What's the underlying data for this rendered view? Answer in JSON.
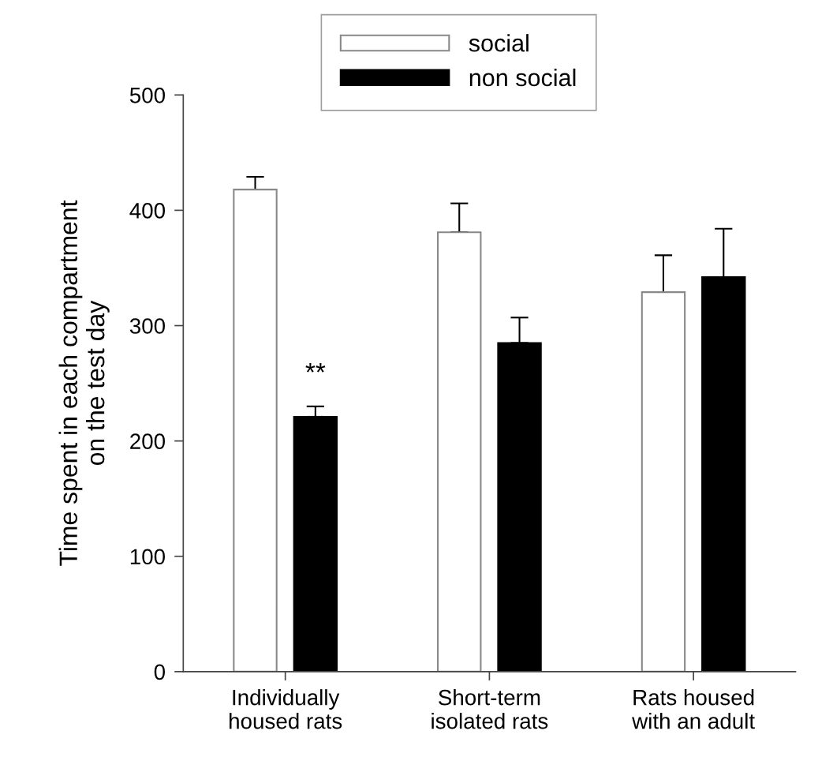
{
  "chart_data": {
    "type": "bar",
    "ylabel": "Time spent in each compartment\non the test day",
    "categories": [
      "Individually\nhoused rats",
      "Short-term\nisolated rats",
      "Rats housed\nwith an adult"
    ],
    "series": [
      {
        "name": "social",
        "color": "#ffffff",
        "values": [
          418,
          381,
          329
        ],
        "errors": [
          [
            418,
            429
          ],
          [
            381,
            406
          ],
          [
            329,
            361
          ]
        ]
      },
      {
        "name": "non social",
        "color": "#000000",
        "values": [
          221,
          285,
          342
        ],
        "errors": [
          [
            221,
            230
          ],
          [
            285,
            307
          ],
          [
            342,
            384
          ]
        ]
      }
    ],
    "ylim": [
      0,
      500
    ],
    "yticks": [
      0,
      100,
      200,
      300,
      400,
      500
    ],
    "grid": false,
    "legend": "top",
    "annotations": [
      "**"
    ]
  }
}
